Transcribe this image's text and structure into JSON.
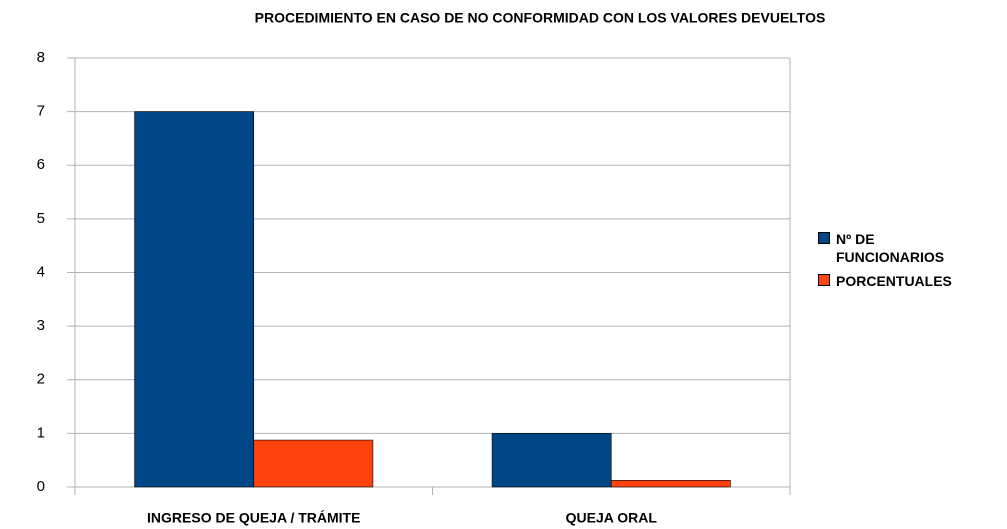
{
  "chart_data": {
    "type": "bar",
    "title": "PROCEDIMIENTO EN CASO DE NO CONFORMIDAD CON LOS VALORES DEVUELTOS",
    "categories": [
      "INGRESO DE QUEJA / TRÁMITE",
      "QUEJA ORAL"
    ],
    "series": [
      {
        "name": "Nº DE FUNCIONARIOS",
        "color": "#004586",
        "values": [
          7,
          1
        ]
      },
      {
        "name": "PORCENTUALES",
        "color": "#ff420e",
        "values": [
          0.875,
          0.125
        ]
      }
    ],
    "ylim": [
      0,
      8
    ],
    "yticks": [
      0,
      1,
      2,
      3,
      4,
      5,
      6,
      7,
      8
    ],
    "grid": true,
    "legend": "right"
  }
}
